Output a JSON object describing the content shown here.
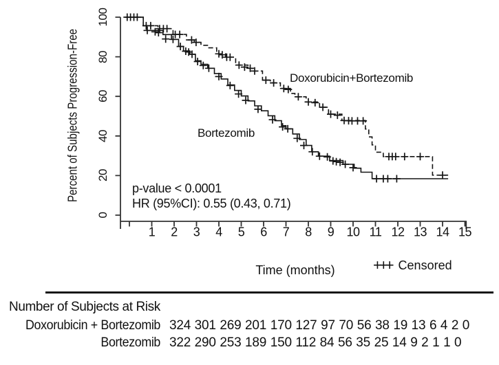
{
  "figure": {
    "y_axis": {
      "title": "Percent of Subjects Progression-Free",
      "ticks": [
        0,
        20,
        40,
        60,
        80,
        100
      ]
    },
    "x_axis": {
      "title": "Time (months)",
      "tick_labels": [
        1,
        2,
        3,
        4,
        5,
        6,
        7,
        8,
        9,
        10,
        11,
        12,
        13,
        14,
        15
      ]
    },
    "annotations": {
      "p_value": "p-value < 0.0001",
      "hazard_ratio": "HR (95%CI): 0.55 (0.43, 0.71)"
    },
    "legend": {
      "censored_symbol": "+++",
      "censored_label": "Censored"
    }
  },
  "risk_table": {
    "title": "Number of Subjects at Risk",
    "rows": [
      {
        "label": "Doxorubicin + Bortezomib",
        "counts": [
          324,
          301,
          269,
          201,
          170,
          127,
          97,
          70,
          56,
          38,
          19,
          13,
          6,
          4,
          2,
          0
        ]
      },
      {
        "label": "Bortezomib",
        "counts": [
          322,
          290,
          253,
          189,
          150,
          112,
          84,
          56,
          35,
          25,
          14,
          9,
          2,
          1,
          1,
          0
        ]
      }
    ]
  },
  "chart_data": {
    "type": "line",
    "subtype": "kaplan-meier-step",
    "title": "",
    "xlabel": "Time (months)",
    "ylabel": "Percent of Subjects Progression-Free",
    "xlim": [
      0,
      15
    ],
    "ylim": [
      0,
      100
    ],
    "x_ticks": [
      0,
      1,
      2,
      3,
      4,
      5,
      6,
      7,
      8,
      9,
      10,
      11,
      12,
      13,
      14,
      15
    ],
    "y_ticks": [
      0,
      20,
      40,
      60,
      80,
      100
    ],
    "grid": false,
    "line_color": "#141414",
    "annotations": [
      "p-value < 0.0001",
      "HR (95%CI): 0.55 (0.43, 0.71)"
    ],
    "legend_position": "bottom-right",
    "series": [
      {
        "name": "Doxorubicin+Bortezomib",
        "style": "dashed",
        "end_month": 14.25,
        "steps": [
          [
            -0.18,
            100
          ],
          [
            0.62,
            95.7
          ],
          [
            1.28,
            94.2
          ],
          [
            1.95,
            91.3
          ],
          [
            2.55,
            88.5
          ],
          [
            2.9,
            87.3
          ],
          [
            3.2,
            85.8
          ],
          [
            3.55,
            84.5
          ],
          [
            3.9,
            81.5
          ],
          [
            4.3,
            79.8
          ],
          [
            4.75,
            75.8
          ],
          [
            5.3,
            74.2
          ],
          [
            5.5,
            72.8
          ],
          [
            5.95,
            68.2
          ],
          [
            6.3,
            66.8
          ],
          [
            6.75,
            64
          ],
          [
            7.2,
            61.5
          ],
          [
            7.4,
            59.8
          ],
          [
            7.9,
            57.2
          ],
          [
            8.5,
            54.5
          ],
          [
            8.9,
            51
          ],
          [
            9.5,
            47.8
          ],
          [
            10.55,
            43.5
          ],
          [
            10.7,
            39.5
          ],
          [
            10.85,
            35.5
          ],
          [
            11.0,
            31.8
          ],
          [
            11.35,
            29.6
          ],
          [
            13.55,
            20.2
          ]
        ],
        "censored": [
          [
            -0.1,
            100
          ],
          [
            0.05,
            100
          ],
          [
            0.2,
            100
          ],
          [
            0.35,
            100
          ],
          [
            0.75,
            95.7
          ],
          [
            0.95,
            95.7
          ],
          [
            1.35,
            94.2
          ],
          [
            1.52,
            94.2
          ],
          [
            1.68,
            94.2
          ],
          [
            2.05,
            91.3
          ],
          [
            2.25,
            91.3
          ],
          [
            2.78,
            88.5
          ],
          [
            2.98,
            87.3
          ],
          [
            4.0,
            81.5
          ],
          [
            4.15,
            81
          ],
          [
            4.35,
            79.8
          ],
          [
            4.5,
            79.8
          ],
          [
            4.9,
            75.8
          ],
          [
            5.15,
            74.8
          ],
          [
            5.4,
            74.2
          ],
          [
            5.6,
            72.8
          ],
          [
            6.1,
            68.2
          ],
          [
            6.45,
            66.8
          ],
          [
            6.9,
            64
          ],
          [
            7.1,
            63.5
          ],
          [
            7.55,
            59.8
          ],
          [
            8.0,
            57.2
          ],
          [
            8.3,
            56.8
          ],
          [
            8.65,
            54.5
          ],
          [
            9.0,
            51
          ],
          [
            9.3,
            50.5
          ],
          [
            9.6,
            47.8
          ],
          [
            9.8,
            47.7
          ],
          [
            9.95,
            47.6
          ],
          [
            10.2,
            47.6
          ],
          [
            10.45,
            47.6
          ],
          [
            11.6,
            29.6
          ],
          [
            11.75,
            29.6
          ],
          [
            11.9,
            29.6
          ],
          [
            12.3,
            29.6
          ],
          [
            13.0,
            29.6
          ],
          [
            14.0,
            20.2
          ]
        ]
      },
      {
        "name": "Bortezomib",
        "style": "solid",
        "end_month": 14.25,
        "steps": [
          [
            -0.18,
            100
          ],
          [
            0.62,
            95.7
          ],
          [
            0.78,
            93.3
          ],
          [
            1.5,
            91.2
          ],
          [
            1.88,
            88.8
          ],
          [
            2.2,
            85.2
          ],
          [
            2.42,
            83
          ],
          [
            2.7,
            81.3
          ],
          [
            2.95,
            78
          ],
          [
            3.2,
            76.2
          ],
          [
            3.5,
            74.2
          ],
          [
            3.8,
            71.5
          ],
          [
            4.1,
            68.8
          ],
          [
            4.4,
            65.8
          ],
          [
            4.7,
            63
          ],
          [
            5.0,
            60.2
          ],
          [
            5.3,
            57.7
          ],
          [
            5.6,
            55.2
          ],
          [
            5.9,
            52.7
          ],
          [
            6.2,
            50.2
          ],
          [
            6.5,
            47.7
          ],
          [
            6.8,
            45.2
          ],
          [
            7.0,
            43.6
          ],
          [
            7.3,
            41
          ],
          [
            7.6,
            38.2
          ],
          [
            7.9,
            35.2
          ],
          [
            8.15,
            32
          ],
          [
            8.45,
            29.8
          ],
          [
            8.95,
            27.6
          ],
          [
            9.55,
            25.7
          ],
          [
            10.05,
            23.7
          ],
          [
            10.35,
            21.7
          ],
          [
            10.85,
            18.4
          ]
        ],
        "censored": [
          [
            0.8,
            93.3
          ],
          [
            1.15,
            92.6
          ],
          [
            1.3,
            92.2
          ],
          [
            1.62,
            89
          ],
          [
            1.95,
            88.8
          ],
          [
            2.28,
            85.2
          ],
          [
            2.52,
            82.8
          ],
          [
            2.65,
            82.4
          ],
          [
            2.8,
            81.3
          ],
          [
            3.05,
            77.6
          ],
          [
            3.3,
            75.6
          ],
          [
            3.55,
            74.2
          ],
          [
            4.0,
            70
          ],
          [
            4.5,
            65.5
          ],
          [
            4.88,
            61.2
          ],
          [
            5.2,
            58
          ],
          [
            5.75,
            53.5
          ],
          [
            6.4,
            48.2
          ],
          [
            6.85,
            44.6
          ],
          [
            7.08,
            43.6
          ],
          [
            7.5,
            38.8
          ],
          [
            7.8,
            35.2
          ],
          [
            8.18,
            32
          ],
          [
            8.5,
            29.8
          ],
          [
            8.85,
            29.4
          ],
          [
            9.1,
            27.4
          ],
          [
            9.25,
            27
          ],
          [
            9.42,
            26.7
          ],
          [
            9.65,
            25.7
          ],
          [
            10.0,
            24
          ],
          [
            11.05,
            18.4
          ],
          [
            11.35,
            18.4
          ],
          [
            11.55,
            18.4
          ],
          [
            11.95,
            18.4
          ]
        ]
      }
    ],
    "risk_table": {
      "title": "Number of Subjects at Risk",
      "time_points": [
        0,
        1,
        2,
        3,
        4,
        5,
        6,
        7,
        8,
        9,
        10,
        11,
        12,
        13,
        14,
        15
      ],
      "groups": [
        {
          "name": "Doxorubicin + Bortezomib",
          "at_risk": [
            324,
            301,
            269,
            201,
            170,
            127,
            97,
            70,
            56,
            38,
            19,
            13,
            6,
            4,
            2,
            0
          ]
        },
        {
          "name": "Bortezomib",
          "at_risk": [
            322,
            290,
            253,
            189,
            150,
            112,
            84,
            56,
            35,
            25,
            14,
            9,
            2,
            1,
            1,
            0
          ]
        }
      ]
    }
  }
}
